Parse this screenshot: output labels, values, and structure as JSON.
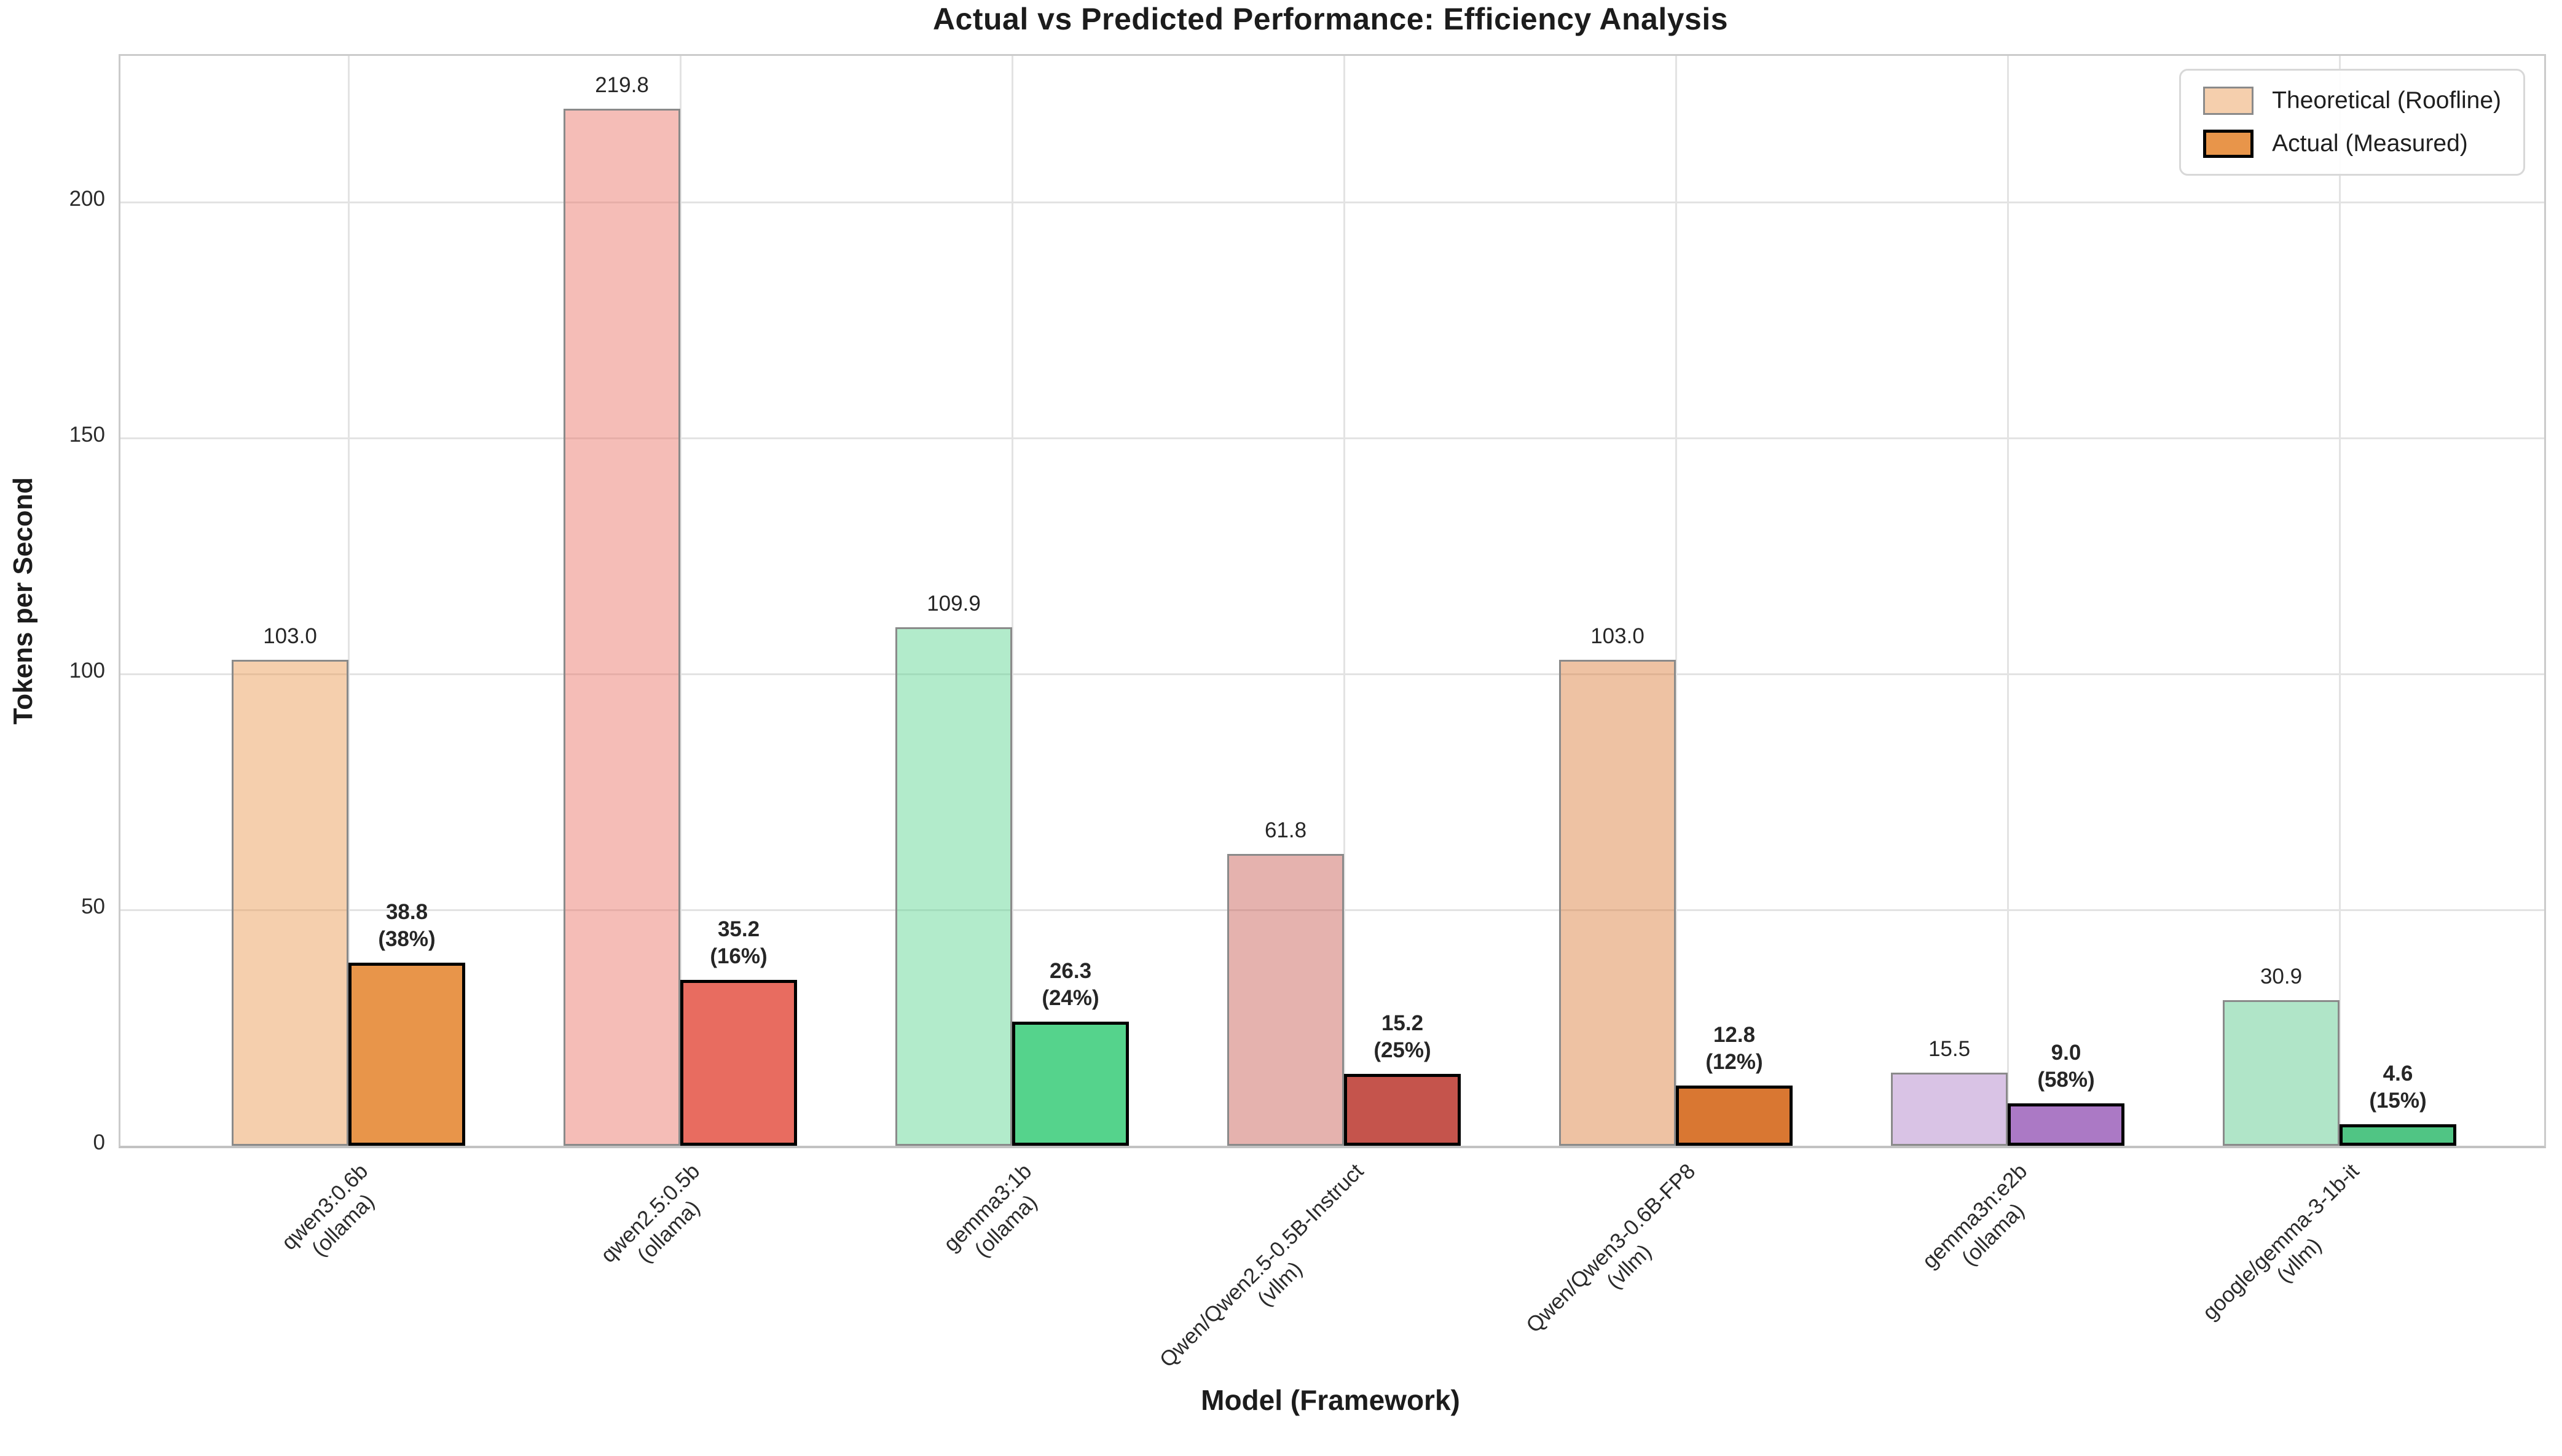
{
  "chart_data": {
    "type": "bar",
    "title": "Actual vs Predicted Performance: Efficiency Analysis",
    "xlabel": "Model (Framework)",
    "ylabel": "Tokens per Second",
    "ylim": [
      0,
      231
    ],
    "yticks": [
      0,
      50,
      100,
      150,
      200
    ],
    "grid": true,
    "legend_position": "top-right",
    "categories": [
      "qwen3:0.6b\n(ollama)",
      "qwen2.5:0.5b\n(ollama)",
      "gemma3:1b\n(ollama)",
      "Qwen/Qwen2.5-0.5B-Instruct\n(vllm)",
      "Qwen/Qwen3-0.6B-FP8\n(vllm)",
      "gemma3n:e2b\n(ollama)",
      "google/gemma-3-1b-it\n(vllm)"
    ],
    "series": [
      {
        "name": "Theoretical (Roofline)",
        "values": [
          103.0,
          219.8,
          109.9,
          61.8,
          103.0,
          15.5,
          30.9
        ],
        "labels": [
          "103.0",
          "219.8",
          "109.9",
          "61.8",
          "103.0",
          "15.5",
          "30.9"
        ],
        "colors": [
          "rgba(232,149,74,0.45)",
          "rgba(232,108,96,0.45)",
          "rgba(85,211,140,0.45)",
          "rgba(197,84,76,0.45)",
          "rgba(217,119,50,0.45)",
          "rgba(171,121,197,0.45)",
          "rgba(80,197,132,0.45)"
        ],
        "edge_color": "#8a8a8a",
        "label_weight": "normal"
      },
      {
        "name": "Actual (Measured)",
        "values": [
          38.8,
          35.2,
          26.3,
          15.2,
          12.8,
          9.0,
          4.6
        ],
        "labels": [
          "38.8\n(38%)",
          "35.2\n(16%)",
          "26.3\n(24%)",
          "15.2\n(25%)",
          "12.8\n(12%)",
          "9.0\n(58%)",
          "4.6\n(15%)"
        ],
        "colors": [
          "#e8954a",
          "#e86c60",
          "#55d38c",
          "#c5544c",
          "#d97732",
          "#ab79c5",
          "#50c584"
        ],
        "edge_color": "#000000",
        "label_weight": "bold"
      }
    ],
    "efficiency_pct": [
      "38%",
      "16%",
      "24%",
      "25%",
      "12%",
      "58%",
      "15%"
    ],
    "colors": {
      "gridline": "#e3e3e3",
      "spine": "#cbcbcb",
      "text": "#262626"
    }
  }
}
